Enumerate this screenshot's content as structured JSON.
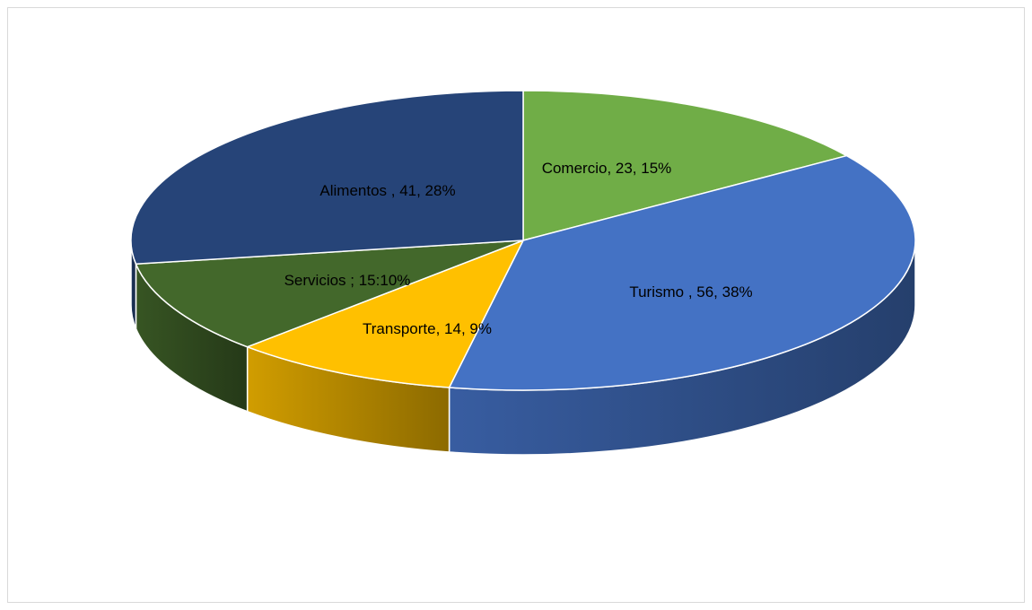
{
  "chart_data": {
    "type": "pie",
    "style": "3d",
    "title": "",
    "legend": "none",
    "slices": [
      {
        "label": "Comercio",
        "value": 23,
        "percent": 15,
        "data_label": "Comercio, 23, 15%",
        "color": "#70AD47"
      },
      {
        "label": "Turismo",
        "value": 56,
        "percent": 38,
        "data_label": "Turismo , 56, 38%",
        "color": "#4472C4"
      },
      {
        "label": "Transporte",
        "value": 14,
        "percent": 9,
        "data_label": "Transporte, 14, 9%",
        "color": "#FFC000"
      },
      {
        "label": "Servicios",
        "value": 15,
        "percent": 10,
        "data_label": "Servicios ; 15:10%",
        "color": "#43682B"
      },
      {
        "label": "Alimentos",
        "value": 41,
        "percent": 28,
        "data_label": "Alimentos , 41, 28%",
        "color": "#264478"
      }
    ]
  }
}
